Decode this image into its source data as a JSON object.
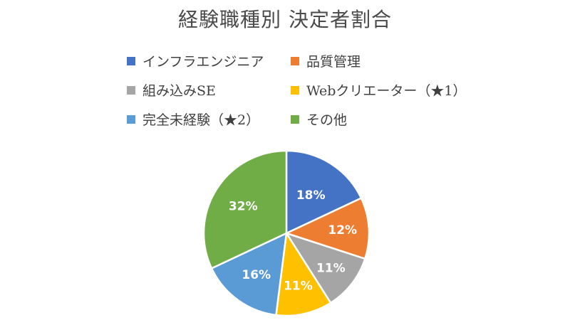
{
  "chart_data": {
    "type": "pie",
    "title": "経験職種別 決定者割合",
    "categories": [
      "インフラエンジニア",
      "品質管理",
      "組み込みSE",
      "Webクリエーター（★1）",
      "完全未経験（★2）",
      "その他"
    ],
    "values": [
      18,
      12,
      11,
      11,
      16,
      32
    ],
    "data_labels": [
      "18%",
      "12%",
      "11%",
      "11%",
      "16%",
      "32%"
    ],
    "colors": [
      "#4472c4",
      "#ed7d31",
      "#a5a5a5",
      "#ffc000",
      "#5b9bd5",
      "#70ad47"
    ],
    "legend_position": "top",
    "start_angle_deg": 0,
    "direction": "clockwise"
  }
}
